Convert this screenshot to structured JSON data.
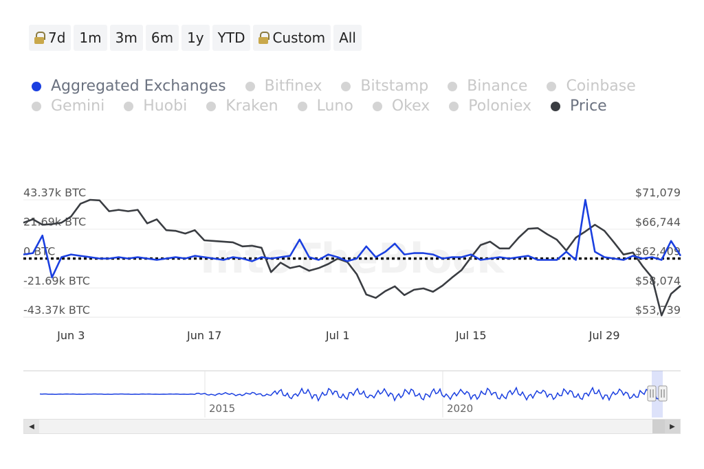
{
  "range_selector": {
    "buttons": [
      {
        "label": "7d",
        "locked": true
      },
      {
        "label": "1m",
        "locked": false
      },
      {
        "label": "3m",
        "locked": false
      },
      {
        "label": "6m",
        "locked": false
      },
      {
        "label": "1y",
        "locked": false
      },
      {
        "label": "YTD",
        "locked": false
      },
      {
        "label": "Custom",
        "locked": true
      },
      {
        "label": "All",
        "locked": false
      }
    ]
  },
  "legend": {
    "items": [
      {
        "label": "Aggregated Exchanges",
        "active": true,
        "color": "#1a3fe0"
      },
      {
        "label": "Bitfinex",
        "active": false
      },
      {
        "label": "Bitstamp",
        "active": false
      },
      {
        "label": "Binance",
        "active": false
      },
      {
        "label": "Coinbase",
        "active": false
      },
      {
        "label": "Gemini",
        "active": false
      },
      {
        "label": "Huobi",
        "active": false
      },
      {
        "label": "Kraken",
        "active": false
      },
      {
        "label": "Luno",
        "active": false
      },
      {
        "label": "Okex",
        "active": false
      },
      {
        "label": "Poloniex",
        "active": false
      },
      {
        "label": "Price",
        "active": true,
        "color": "#3a3d42"
      }
    ]
  },
  "watermark": "IntoTheBlock",
  "chart_data": {
    "type": "line",
    "title": "",
    "x_range": [
      "2024-05-29",
      "2024-08-06"
    ],
    "x_ticks": [
      {
        "date": "2024-06-03",
        "label": "Jun 3"
      },
      {
        "date": "2024-06-17",
        "label": "Jun 17"
      },
      {
        "date": "2024-07-01",
        "label": "Jul 1"
      },
      {
        "date": "2024-07-15",
        "label": "Jul 15"
      },
      {
        "date": "2024-07-29",
        "label": "Jul 29"
      }
    ],
    "y_left": {
      "min": -43370,
      "max": 43370,
      "ticks": [
        {
          "value": 43370,
          "label": "43.37k BTC"
        },
        {
          "value": 21690,
          "label": "21.69k BTC"
        },
        {
          "value": 0,
          "label": "0 BTC"
        },
        {
          "value": -21690,
          "label": "-21.69k BTC"
        },
        {
          "value": -43370,
          "label": "-43.37k BTC"
        }
      ]
    },
    "y_right": {
      "min": 53739,
      "max": 71079,
      "ticks": [
        {
          "value": 71079,
          "label": "$71,079"
        },
        {
          "value": 66744,
          "label": "$66,744"
        },
        {
          "value": 62409,
          "label": "$62,409"
        },
        {
          "value": 58074,
          "label": "$58,074"
        },
        {
          "value": 53739,
          "label": "$53,739"
        }
      ]
    },
    "zero_line": true,
    "series": [
      {
        "name": "Aggregated Exchanges",
        "axis": "left",
        "color": "#1a3fe0",
        "x": [
          "2024-05-29",
          "2024-05-30",
          "2024-05-31",
          "2024-06-01",
          "2024-06-02",
          "2024-06-03",
          "2024-06-04",
          "2024-06-05",
          "2024-06-06",
          "2024-06-07",
          "2024-06-08",
          "2024-06-09",
          "2024-06-10",
          "2024-06-11",
          "2024-06-12",
          "2024-06-13",
          "2024-06-14",
          "2024-06-15",
          "2024-06-16",
          "2024-06-17",
          "2024-06-18",
          "2024-06-19",
          "2024-06-20",
          "2024-06-21",
          "2024-06-22",
          "2024-06-23",
          "2024-06-24",
          "2024-06-25",
          "2024-06-26",
          "2024-06-27",
          "2024-06-28",
          "2024-06-29",
          "2024-06-30",
          "2024-07-01",
          "2024-07-02",
          "2024-07-03",
          "2024-07-04",
          "2024-07-05",
          "2024-07-06",
          "2024-07-07",
          "2024-07-08",
          "2024-07-09",
          "2024-07-10",
          "2024-07-11",
          "2024-07-12",
          "2024-07-13",
          "2024-07-14",
          "2024-07-15",
          "2024-07-16",
          "2024-07-17",
          "2024-07-18",
          "2024-07-19",
          "2024-07-20",
          "2024-07-21",
          "2024-07-22",
          "2024-07-23",
          "2024-07-24",
          "2024-07-25",
          "2024-07-26",
          "2024-07-27",
          "2024-07-28",
          "2024-07-29",
          "2024-07-30",
          "2024-07-31",
          "2024-08-01",
          "2024-08-02",
          "2024-08-03",
          "2024-08-04",
          "2024-08-05",
          "2024-08-06"
        ],
        "values": [
          3000,
          4000,
          17000,
          -14000,
          1000,
          3000,
          2000,
          1000,
          0,
          0,
          1000,
          0,
          1000,
          0,
          -1000,
          0,
          1000,
          0,
          2000,
          1000,
          0,
          -1000,
          1000,
          0,
          -2000,
          1000,
          0,
          1000,
          2000,
          14000,
          1000,
          -1000,
          3000,
          1000,
          -2000,
          0,
          9000,
          1000,
          5000,
          11000,
          3000,
          4000,
          4000,
          3000,
          0,
          1000,
          1000,
          3000,
          -1000,
          0,
          1000,
          0,
          1000,
          2000,
          -1000,
          -1000,
          -1000,
          5000,
          -1000,
          43370,
          5000,
          1000,
          0,
          -1000,
          2000,
          0,
          1000,
          -1000,
          13000,
          2000
        ]
      },
      {
        "name": "Price",
        "axis": "right",
        "color": "#3a3d42",
        "x": [
          "2024-05-29",
          "2024-05-30",
          "2024-05-31",
          "2024-06-01",
          "2024-06-02",
          "2024-06-03",
          "2024-06-04",
          "2024-06-05",
          "2024-06-06",
          "2024-06-07",
          "2024-06-08",
          "2024-06-09",
          "2024-06-10",
          "2024-06-11",
          "2024-06-12",
          "2024-06-13",
          "2024-06-14",
          "2024-06-15",
          "2024-06-16",
          "2024-06-17",
          "2024-06-18",
          "2024-06-19",
          "2024-06-20",
          "2024-06-21",
          "2024-06-22",
          "2024-06-23",
          "2024-06-24",
          "2024-06-25",
          "2024-06-26",
          "2024-06-27",
          "2024-06-28",
          "2024-06-29",
          "2024-06-30",
          "2024-07-01",
          "2024-07-02",
          "2024-07-03",
          "2024-07-04",
          "2024-07-05",
          "2024-07-06",
          "2024-07-07",
          "2024-07-08",
          "2024-07-09",
          "2024-07-10",
          "2024-07-11",
          "2024-07-12",
          "2024-07-13",
          "2024-07-14",
          "2024-07-15",
          "2024-07-16",
          "2024-07-17",
          "2024-07-18",
          "2024-07-19",
          "2024-07-20",
          "2024-07-21",
          "2024-07-22",
          "2024-07-23",
          "2024-07-24",
          "2024-07-25",
          "2024-07-26",
          "2024-07-27",
          "2024-07-28",
          "2024-07-29",
          "2024-07-30",
          "2024-07-31",
          "2024-08-01",
          "2024-08-02",
          "2024-08-03",
          "2024-08-04",
          "2024-08-05",
          "2024-08-06"
        ],
        "values": [
          67700,
          68200,
          67400,
          67500,
          67700,
          68600,
          70500,
          71079,
          71000,
          69400,
          69600,
          69400,
          69600,
          67600,
          68200,
          66600,
          66500,
          66100,
          66600,
          65100,
          65000,
          64900,
          64800,
          64200,
          64300,
          64000,
          60400,
          61800,
          61000,
          61300,
          60600,
          61000,
          61600,
          62400,
          61900,
          60100,
          57100,
          56600,
          57600,
          58300,
          57000,
          57800,
          58000,
          57500,
          58400,
          59600,
          60700,
          62600,
          64400,
          64900,
          63900,
          63900,
          65500,
          66800,
          66900,
          66000,
          65200,
          63600,
          65500,
          66400,
          67400,
          66500,
          64800,
          63000,
          63300,
          61300,
          59600,
          54000,
          57200,
          58400
        ]
      }
    ]
  },
  "navigator": {
    "x_labels": [
      "2015",
      "2020"
    ]
  }
}
